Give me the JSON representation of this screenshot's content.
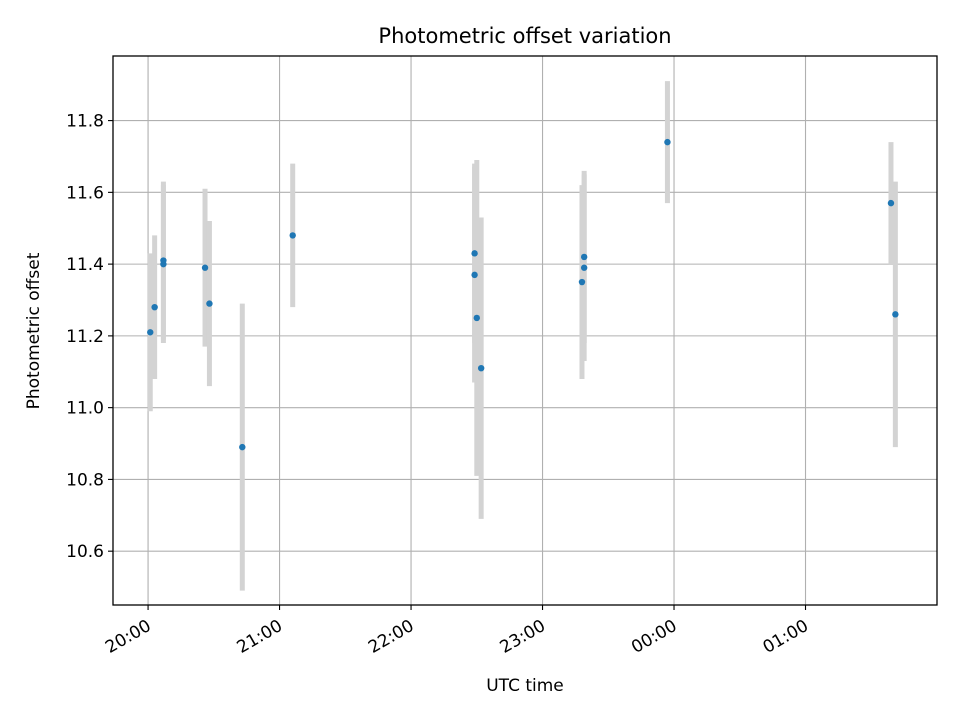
{
  "chart_data": {
    "type": "scatter",
    "title": "Photometric offset variation",
    "xlabel": "UTC time",
    "ylabel": "Photometric offset",
    "x_axis": {
      "kind": "time",
      "range": [
        "19:44",
        "02:00"
      ],
      "ticks": [
        "20:00",
        "21:00",
        "22:00",
        "23:00",
        "00:00",
        "01:00"
      ]
    },
    "y_axis": {
      "range": [
        10.45,
        11.98
      ],
      "ticks": [
        "10.6",
        "10.8",
        "11.0",
        "11.2",
        "11.4",
        "11.6",
        "11.8"
      ]
    },
    "grid": true,
    "colors": {
      "points": "#1f77b4",
      "errorbars": "#d3d3d3",
      "grid": "#b0b0b0"
    },
    "series": [
      {
        "points": [
          {
            "t": "20:01",
            "y": 11.21,
            "err": 0.22
          },
          {
            "t": "20:03",
            "y": 11.28,
            "err": 0.2
          },
          {
            "t": "20:07",
            "y": 11.4,
            "err": 0.22
          },
          {
            "t": "20:07",
            "y": 11.41,
            "err": 0.22
          },
          {
            "t": "20:26",
            "y": 11.39,
            "err": 0.22
          },
          {
            "t": "20:28",
            "y": 11.29,
            "err": 0.23
          },
          {
            "t": "20:43",
            "y": 10.89,
            "err": 0.4
          },
          {
            "t": "21:06",
            "y": 11.48,
            "err": 0.2
          },
          {
            "t": "22:29",
            "y": 11.43,
            "err": 0.25
          },
          {
            "t": "22:29",
            "y": 11.37,
            "err": 0.3
          },
          {
            "t": "22:30",
            "y": 11.25,
            "err": 0.44
          },
          {
            "t": "22:32",
            "y": 11.11,
            "err": 0.42
          },
          {
            "t": "23:18",
            "y": 11.35,
            "err": 0.27
          },
          {
            "t": "23:19",
            "y": 11.39,
            "err": 0.26
          },
          {
            "t": "23:19",
            "y": 11.42,
            "err": 0.24
          },
          {
            "t": "23:57",
            "y": 11.74,
            "err": 0.17
          },
          {
            "t": "01:39",
            "y": 11.57,
            "err": 0.17
          },
          {
            "t": "01:41",
            "y": 11.26,
            "err": 0.37
          }
        ]
      }
    ]
  }
}
